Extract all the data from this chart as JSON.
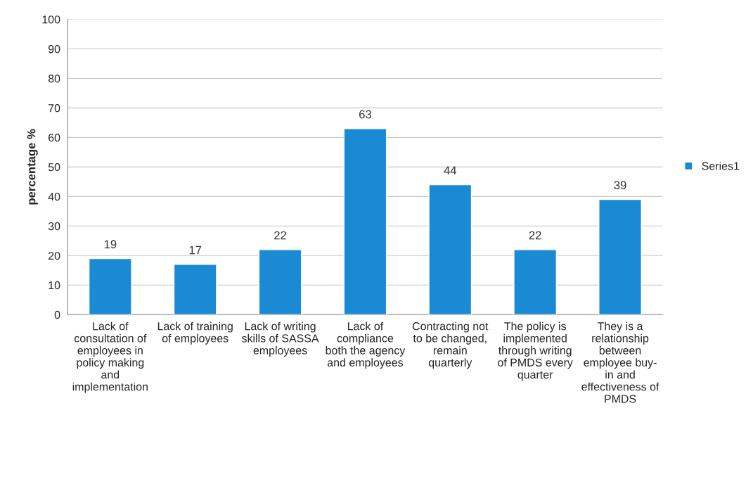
{
  "chart_data": {
    "type": "bar",
    "ylabel": "percentage %",
    "categories": [
      "Lack of\nconsultation of\nemployees in\npolicy making\nand\nimplementation",
      "Lack of training\nof employees",
      "Lack of writing\nskills of SASSA\nemployees",
      "Lack of\ncompliance\nboth the agency\nand employees",
      "Contracting not\nto be changed,\nremain\nquarterly",
      "The policy is\nimplemented\nthrough writing\nof PMDS every\nquarter",
      "They is a\nrelationship\nbetween\nemployee buy-\nin and\neffectiveness of\nPMDS"
    ],
    "series": [
      {
        "name": "Series1",
        "color": "#1a8ad4",
        "values": [
          19,
          17,
          22,
          63,
          44,
          22,
          39
        ]
      }
    ],
    "ylim": [
      0,
      100
    ],
    "yticks": [
      0,
      10,
      20,
      30,
      40,
      50,
      60,
      70,
      80,
      90,
      100
    ],
    "grid": "y",
    "legend": "right",
    "data_labels": true
  }
}
